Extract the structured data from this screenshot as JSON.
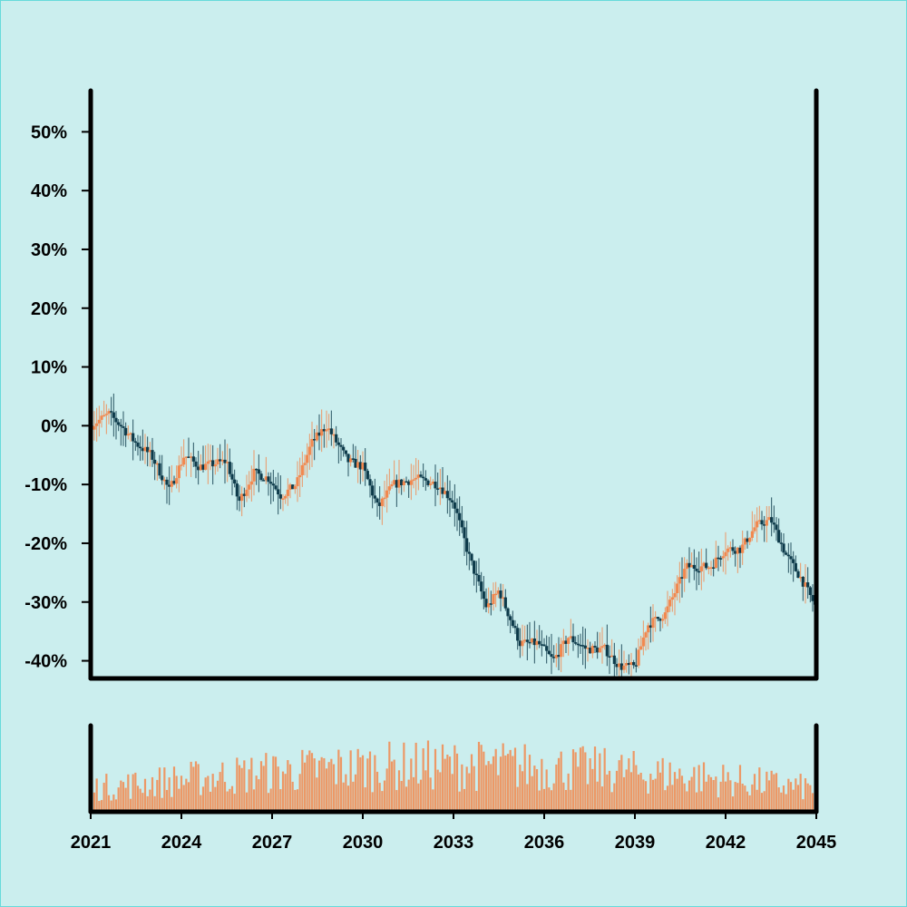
{
  "chart_data": {
    "type": "candlestick",
    "title": "",
    "xlabel": "",
    "ylabel": "",
    "x_range": [
      2021,
      2045
    ],
    "ylim": [
      -43,
      57
    ],
    "y_ticks": [
      {
        "value": 50,
        "label": "50%"
      },
      {
        "value": 40,
        "label": "40%"
      },
      {
        "value": 30,
        "label": "30%"
      },
      {
        "value": 20,
        "label": "20%"
      },
      {
        "value": 10,
        "label": "10%"
      },
      {
        "value": 0,
        "label": "0%"
      },
      {
        "value": -10,
        "label": "-10%"
      },
      {
        "value": -20,
        "label": "-20%"
      },
      {
        "value": -30,
        "label": "-30%"
      },
      {
        "value": -40,
        "label": "-40%"
      }
    ],
    "x_ticks": [
      {
        "value": 2021,
        "label": "2021"
      },
      {
        "value": 2024,
        "label": "2024"
      },
      {
        "value": 2027,
        "label": "2027"
      },
      {
        "value": 2030,
        "label": "2030"
      },
      {
        "value": 2033,
        "label": "2033"
      },
      {
        "value": 2036,
        "label": "2036"
      },
      {
        "value": 2039,
        "label": "2039"
      },
      {
        "value": 2042,
        "label": "2042"
      },
      {
        "value": 2045,
        "label": "2045"
      }
    ],
    "trend_points": [
      [
        2021.0,
        0
      ],
      [
        2021.6,
        2
      ],
      [
        2022.0,
        0
      ],
      [
        2022.5,
        -3
      ],
      [
        2023.0,
        -5
      ],
      [
        2023.6,
        -11
      ],
      [
        2024.1,
        -5
      ],
      [
        2024.6,
        -7
      ],
      [
        2025.5,
        -6
      ],
      [
        2025.9,
        -13
      ],
      [
        2026.4,
        -8
      ],
      [
        2026.9,
        -9
      ],
      [
        2027.3,
        -12
      ],
      [
        2027.8,
        -10
      ],
      [
        2028.3,
        -3
      ],
      [
        2028.8,
        0
      ],
      [
        2029.5,
        -6
      ],
      [
        2030.0,
        -7
      ],
      [
        2030.5,
        -14
      ],
      [
        2031.0,
        -10
      ],
      [
        2031.8,
        -9
      ],
      [
        2032.5,
        -10
      ],
      [
        2033.0,
        -13
      ],
      [
        2033.5,
        -22
      ],
      [
        2034.1,
        -31
      ],
      [
        2034.5,
        -28
      ],
      [
        2035.2,
        -37
      ],
      [
        2035.8,
        -37
      ],
      [
        2036.3,
        -40
      ],
      [
        2036.8,
        -36
      ],
      [
        2037.4,
        -38
      ],
      [
        2038.0,
        -38
      ],
      [
        2038.5,
        -41
      ],
      [
        2039.0,
        -41
      ],
      [
        2039.4,
        -34
      ],
      [
        2040.0,
        -32
      ],
      [
        2040.7,
        -24
      ],
      [
        2041.5,
        -24
      ],
      [
        2042.0,
        -21
      ],
      [
        2042.5,
        -21
      ],
      [
        2043.0,
        -17
      ],
      [
        2043.5,
        -16
      ],
      [
        2044.0,
        -22
      ],
      [
        2044.5,
        -26
      ],
      [
        2045.0,
        -31
      ]
    ],
    "up_color": "#f2884e",
    "down_color": "#0d3a4a",
    "volume_color": "#f2884e",
    "background": "#cbeeee",
    "grid": false,
    "volume_panel": true
  }
}
